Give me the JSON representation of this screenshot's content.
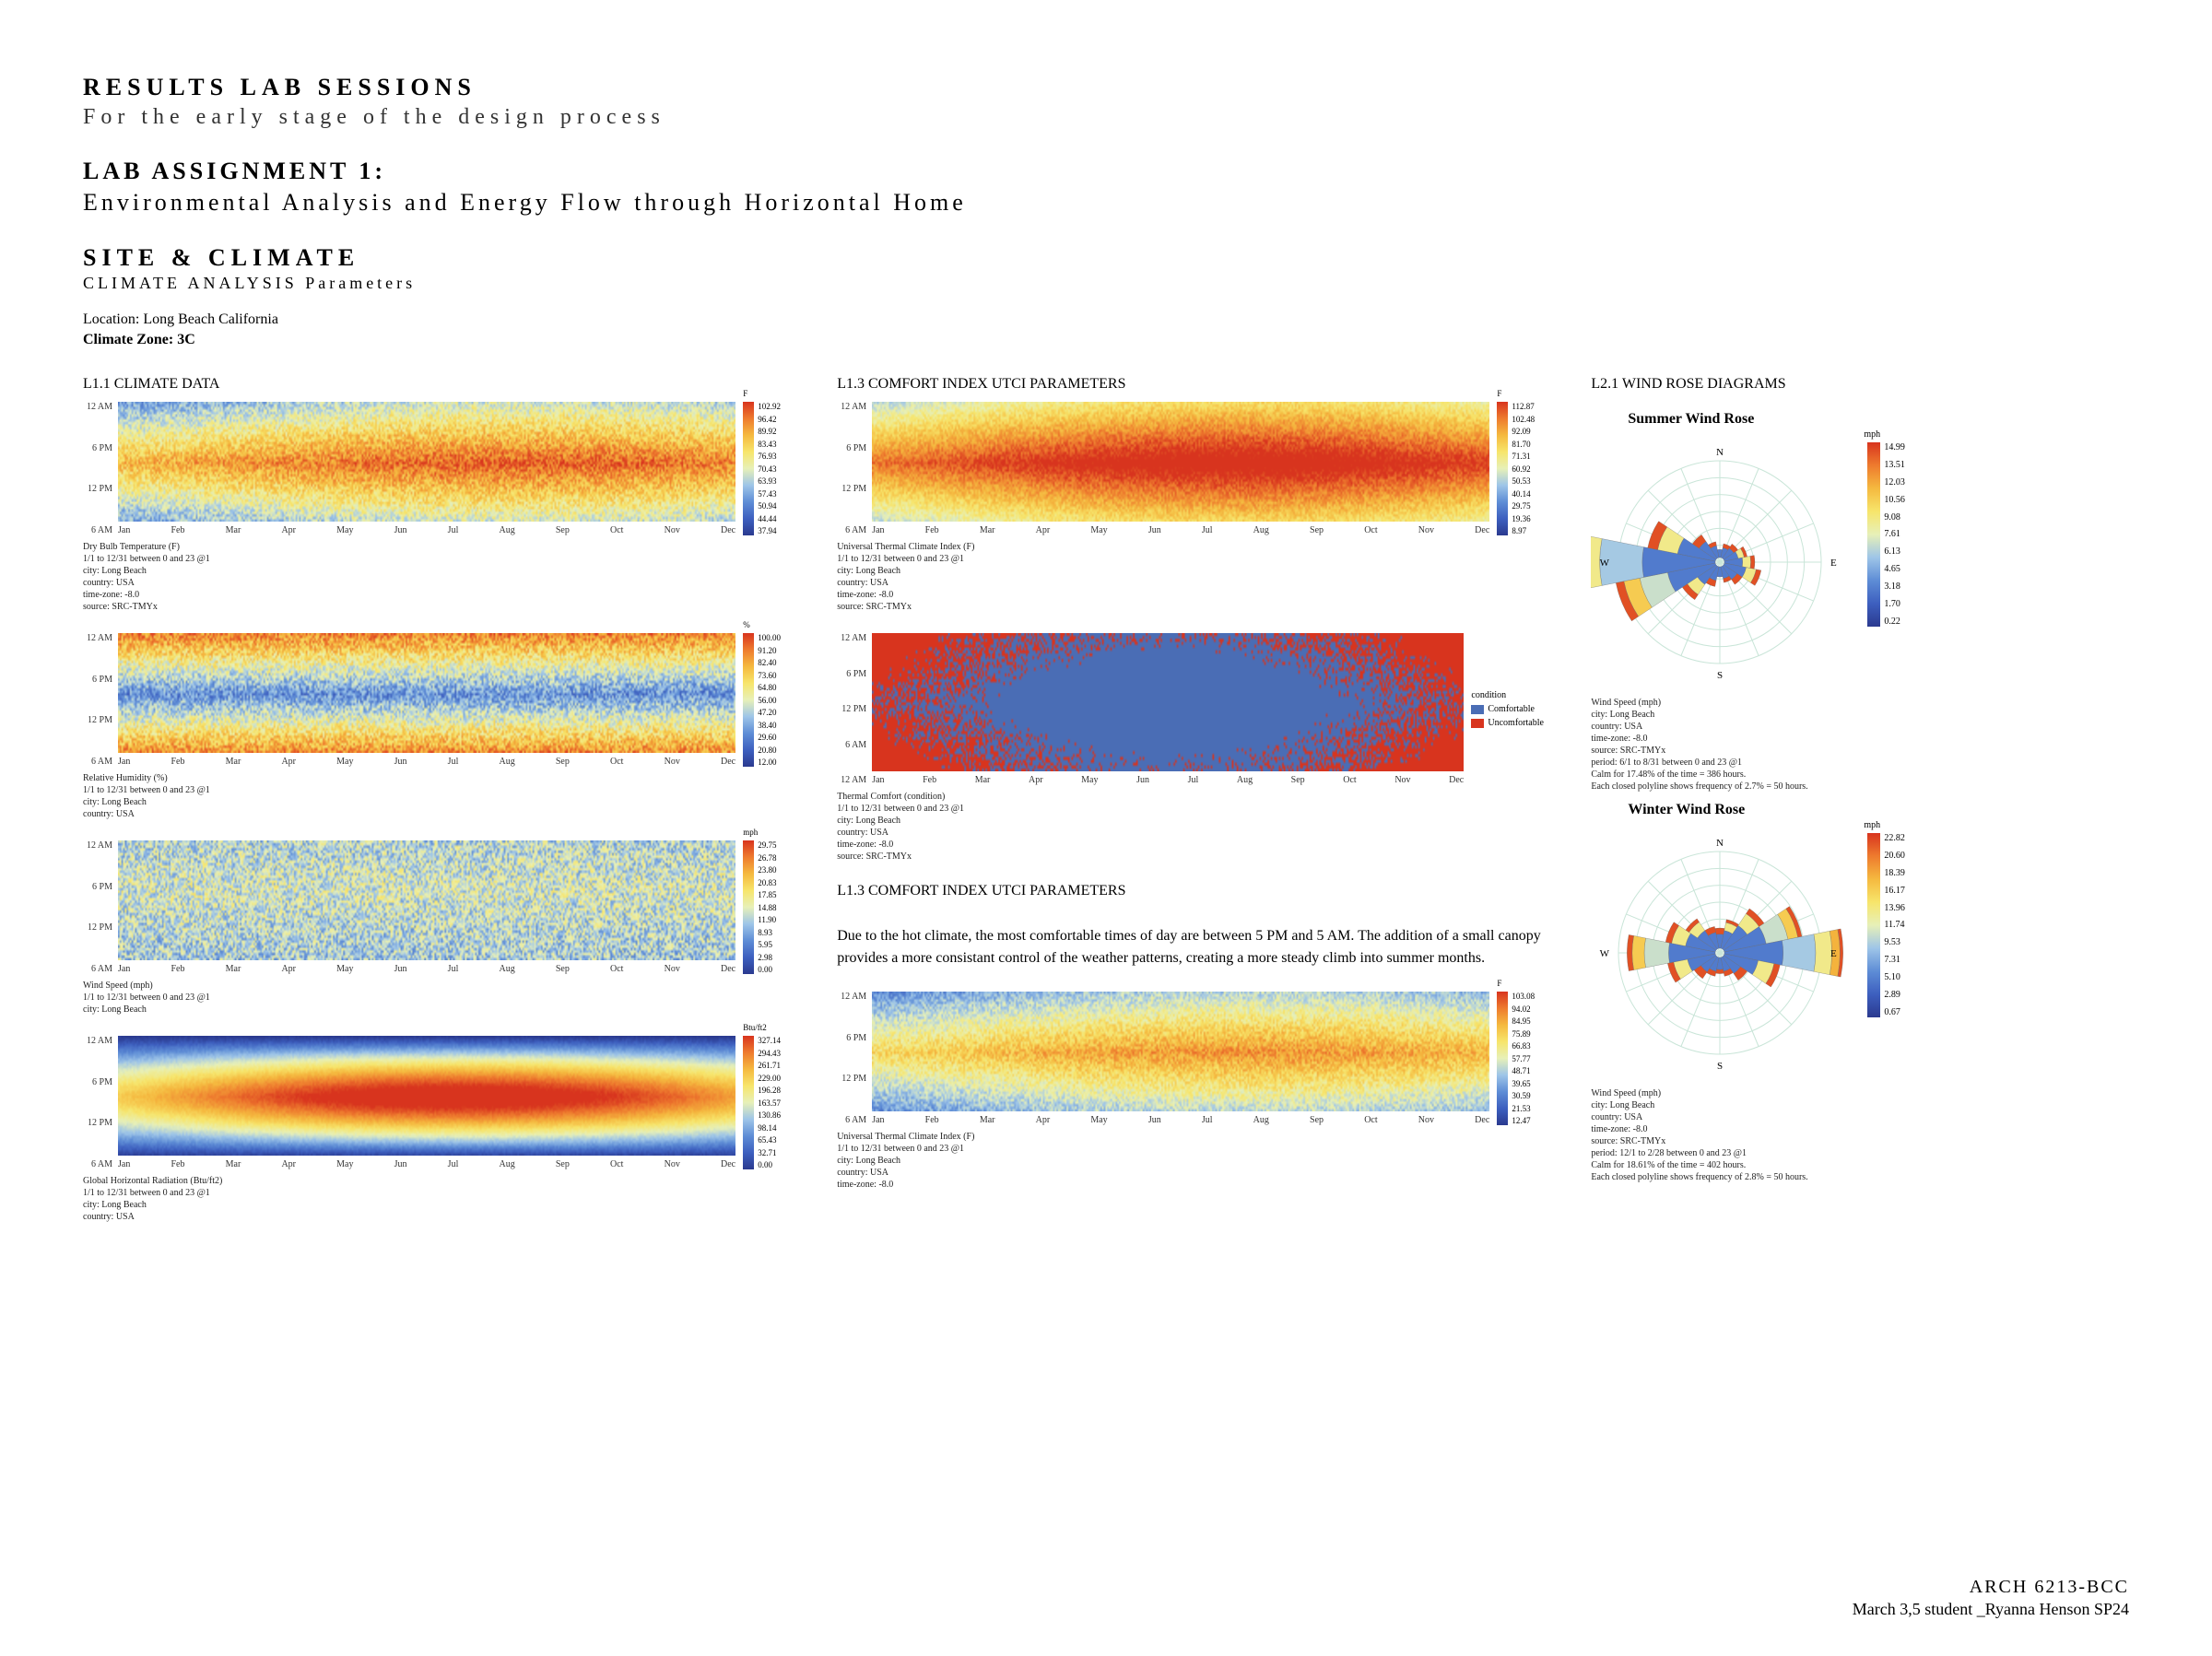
{
  "header": {
    "results": "RESULTS LAB SESSIONS",
    "subtitle": "For the early stage of the design process",
    "lab": "LAB ASSIGNMENT 1:",
    "lab_sub": "Environmental Analysis and Energy Flow through Horizontal Home",
    "site": "SITE & CLIMATE",
    "clim": "CLIMATE ANALYSIS Parameters",
    "location": "Location: Long Beach California",
    "zone": "Climate Zone: 3C"
  },
  "months": [
    "Jan",
    "Feb",
    "Mar",
    "Apr",
    "May",
    "Jun",
    "Jul",
    "Aug",
    "Sep",
    "Oct",
    "Nov",
    "Dec"
  ],
  "hours4": [
    "12 AM",
    "6 PM",
    "12 PM",
    "6 AM"
  ],
  "hours5": [
    "12 AM",
    "6 PM",
    "12 PM",
    "6 AM",
    "12 AM"
  ],
  "palette_heat": [
    "#2b3a8f",
    "#3d5fbf",
    "#5e8dd6",
    "#9ec5e8",
    "#e7f0b8",
    "#f7e56b",
    "#f5b93f",
    "#ee7b2e",
    "#d8341e"
  ],
  "col1": {
    "section": "L1.1 CLIMATE DATA",
    "charts": [
      {
        "type": "heatmap",
        "id": "hm-drybulb",
        "legend_unit": "F",
        "legend_ticks": [
          "102.92",
          "96.42",
          "89.92",
          "83.43",
          "76.93",
          "70.43",
          "63.93",
          "57.43",
          "50.94",
          "44.44",
          "37.94"
        ],
        "meta": "Dry Bulb Temperature (F)\n1/1 to 12/31 between 0 and 23 @1\ncity: Long Beach\ncountry: USA\ntime-zone: -8.0\nsource: SRC-TMYx",
        "style": "banded-warm-mid",
        "range": [
          37.94,
          102.92
        ]
      },
      {
        "type": "heatmap",
        "id": "hm-rh",
        "legend_unit": "%",
        "legend_ticks": [
          "100.00",
          "91.20",
          "82.40",
          "73.60",
          "64.80",
          "56.00",
          "47.20",
          "38.40",
          "29.60",
          "20.80",
          "12.00"
        ],
        "meta": "Relative Humidity (%)\n1/1 to 12/31 between 0 and 23 @1\ncity: Long Beach\ncountry: USA",
        "style": "banded-warm-outer",
        "range": [
          12,
          100
        ]
      },
      {
        "type": "heatmap",
        "id": "hm-wind",
        "legend_unit": "mph",
        "legend_ticks": [
          "29.75",
          "26.78",
          "23.80",
          "20.83",
          "17.85",
          "14.88",
          "11.90",
          "8.93",
          "5.95",
          "2.98",
          "0.00"
        ],
        "meta": "Wind Speed (mph)\n1/1 to 12/31 between 0 and 23 @1\ncity: Long Beach",
        "style": "noisy-cool",
        "range": [
          0,
          29.75
        ]
      },
      {
        "type": "heatmap",
        "id": "hm-ghr",
        "legend_unit": "Btu/ft2",
        "legend_ticks": [
          "327.14",
          "294.43",
          "261.71",
          "229.00",
          "196.28",
          "163.57",
          "130.86",
          "98.14",
          "65.43",
          "32.71",
          "0.00"
        ],
        "meta": "Global Horizontal Radiation (Btu/ft2)\n1/1 to 12/31 between 0 and 23 @1\ncity: Long Beach\ncountry: USA",
        "style": "solar",
        "range": [
          0,
          327.14
        ]
      }
    ]
  },
  "col2": {
    "section": "L1.3 COMFORT INDEX UTCI PARAMETERS",
    "section2": "L1.3 COMFORT INDEX UTCI PARAMETERS",
    "analysis": "Due to the hot climate, the most comfortable times of day are between 5 PM and 5 AM. The addition of a small canopy provides a more consistant control of the weather patterns, creating a more steady climb into summer months.",
    "charts": [
      {
        "type": "heatmap",
        "id": "hm-utci1",
        "legend_unit": "F",
        "legend_ticks": [
          "112.87",
          "102.48",
          "92.09",
          "81.70",
          "71.31",
          "60.92",
          "50.53",
          "40.14",
          "29.75",
          "19.36",
          "8.97"
        ],
        "meta": "Universal Thermal Climate Index (F)\n1/1 to 12/31 between 0 and 23 @1\ncity: Long Beach\ncountry: USA\ntime-zone: -8.0\nsource: SRC-TMYx",
        "style": "banded-hot-mid",
        "range": [
          8.97,
          112.87
        ]
      },
      {
        "type": "condition",
        "id": "cond-thermal",
        "legend_title": "condition",
        "colors": {
          "comfortable": "#4a6db5",
          "uncomfortable": "#d8341e"
        },
        "labels": {
          "comfortable": "Comfortable",
          "uncomfortable": "Uncomfortable"
        },
        "meta": "Thermal Comfort (condition)\n1/1 to 12/31 between 0 and 23 @1\ncity: Long Beach\ncountry: USA\ntime-zone: -8.0\nsource: SRC-TMYx"
      },
      {
        "type": "heatmap",
        "id": "hm-utci2",
        "legend_unit": "F",
        "legend_ticks": [
          "103.08",
          "94.02",
          "84.95",
          "75.89",
          "66.83",
          "57.77",
          "48.71",
          "39.65",
          "30.59",
          "21.53",
          "12.47"
        ],
        "meta": "Universal Thermal Climate Index (F)\n1/1 to 12/31 between 0 and 23 @1\ncity: Long Beach\ncountry: USA\ntime-zone: -8.0",
        "style": "banded-warm-mid-sparse",
        "range": [
          12.47,
          103.08
        ]
      }
    ]
  },
  "col3": {
    "section": "L2.1 WIND ROSE DIAGRAMS",
    "roses": [
      {
        "title": "Summer Wind Rose",
        "legend_unit": "mph",
        "legend_ticks": [
          "14.99",
          "13.51",
          "12.03",
          "10.56",
          "9.08",
          "7.61",
          "6.13",
          "4.65",
          "3.18",
          "1.70",
          "0.22"
        ],
        "grid_color": "#c9e5d8",
        "petals": [
          {
            "dir": 0,
            "segs": [
              8
            ]
          },
          {
            "dir": 22.5,
            "segs": [
              10,
              4
            ]
          },
          {
            "dir": 45,
            "segs": [
              12,
              5
            ]
          },
          {
            "dir": 67.5,
            "segs": [
              14,
              6,
              3
            ]
          },
          {
            "dir": 90,
            "segs": [
              18,
              8,
              4
            ]
          },
          {
            "dir": 112.5,
            "segs": [
              22,
              10,
              5
            ]
          },
          {
            "dir": 135,
            "segs": [
              16,
              6
            ]
          },
          {
            "dir": 157.5,
            "segs": [
              12,
              4
            ]
          },
          {
            "dir": 180,
            "segs": [
              10
            ]
          },
          {
            "dir": 202.5,
            "segs": [
              14,
              6
            ]
          },
          {
            "dir": 225,
            "segs": [
              22,
              12,
              6
            ]
          },
          {
            "dir": 247.5,
            "segs": [
              48,
              28,
              16,
              8
            ]
          },
          {
            "dir": 270,
            "segs": [
              72,
              42,
              24,
              12,
              5
            ]
          },
          {
            "dir": 292.5,
            "segs": [
              38,
              20,
              10
            ]
          },
          {
            "dir": 315,
            "segs": [
              20,
              8
            ]
          },
          {
            "dir": 337.5,
            "segs": [
              12,
              4
            ]
          }
        ],
        "meta": "Wind Speed (mph)\ncity: Long Beach\ncountry: USA\ntime-zone: -8.0\nsource: SRC-TMYx\nperiod: 6/1 to 8/31 between 0 and 23 @1\nCalm for 17.48% of the time = 386 hours.\nEach closed polyline shows frequency of 2.7% = 50 hours."
      },
      {
        "title": "Winter Wind Rose",
        "legend_unit": "mph",
        "legend_ticks": [
          "22.82",
          "20.60",
          "18.39",
          "16.17",
          "13.96",
          "11.74",
          "9.53",
          "7.31",
          "5.10",
          "2.89",
          "0.67"
        ],
        "grid_color": "#c9e5d8",
        "petals": [
          {
            "dir": 0,
            "segs": [
              14,
              6
            ]
          },
          {
            "dir": 22.5,
            "segs": [
              18,
              8,
              3
            ]
          },
          {
            "dir": 45,
            "segs": [
              28,
              14,
              6
            ]
          },
          {
            "dir": 67.5,
            "segs": [
              42,
              22,
              10,
              4
            ]
          },
          {
            "dir": 90,
            "segs": [
              58,
              32,
              16,
              8,
              3
            ]
          },
          {
            "dir": 112.5,
            "segs": [
              34,
              16,
              6
            ]
          },
          {
            "dir": 135,
            "segs": [
              20,
              8
            ]
          },
          {
            "dir": 157.5,
            "segs": [
              14,
              5
            ]
          },
          {
            "dir": 180,
            "segs": [
              12,
              4
            ]
          },
          {
            "dir": 202.5,
            "segs": [
              14,
              5
            ]
          },
          {
            "dir": 225,
            "segs": [
              18,
              8
            ]
          },
          {
            "dir": 247.5,
            "segs": [
              28,
              14,
              6
            ]
          },
          {
            "dir": 270,
            "segs": [
              46,
              24,
              12,
              5
            ]
          },
          {
            "dir": 292.5,
            "segs": [
              30,
              14,
              6
            ]
          },
          {
            "dir": 315,
            "segs": [
              22,
              10,
              4
            ]
          },
          {
            "dir": 337.5,
            "segs": [
              16,
              6
            ]
          }
        ],
        "meta": "Wind Speed (mph)\ncity: Long Beach\ncountry: USA\ntime-zone: -8.0\nsource: SRC-TMYx\nperiod: 12/1 to 2/28 between 0 and 23 @1\nCalm for 18.61% of the time = 402 hours.\nEach closed polyline shows frequency of 2.8% = 50 hours."
      }
    ]
  },
  "footer": {
    "course": "ARCH 6213-BCC",
    "student": "March 3,5 student _Ryanna Henson SP24"
  },
  "cardinal": {
    "N": "N",
    "E": "E",
    "S": "S",
    "W": "W"
  }
}
